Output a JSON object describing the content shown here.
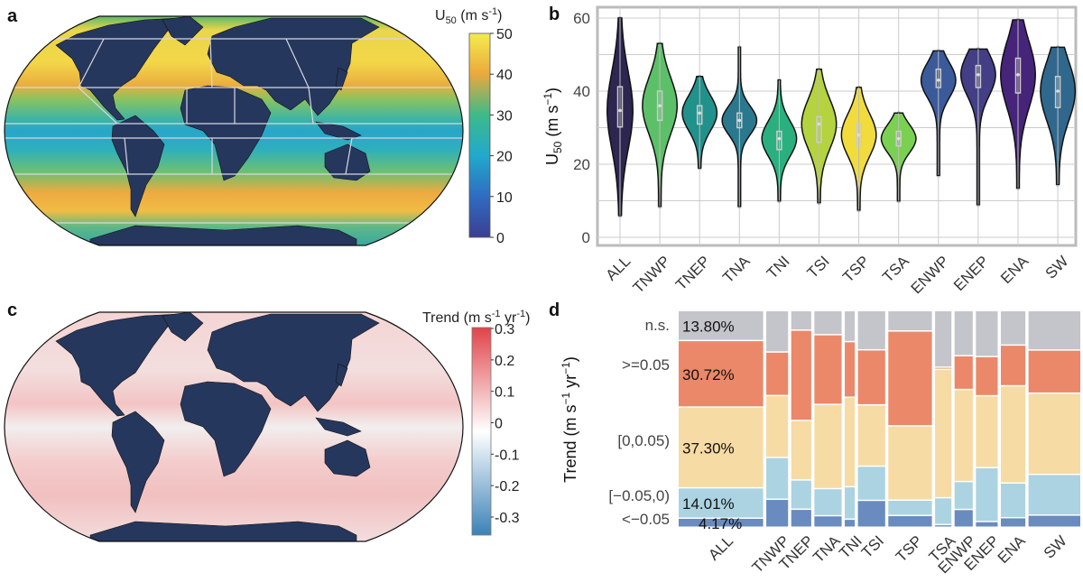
{
  "panel_a": {
    "label": "a",
    "colorbar": {
      "title_main": "U",
      "title_sub": "50",
      "title_unit": " (m s",
      "title_sup": "-1",
      "title_end": ")",
      "ticks": [
        "50",
        "40",
        "30",
        "20",
        "10",
        "0"
      ],
      "colors": [
        "#f5ec4e",
        "#eaa93c",
        "#3dba8a",
        "#21a9cc",
        "#2f6cc2",
        "#3b3f91"
      ]
    },
    "land_color": "#26375e"
  },
  "panel_c": {
    "label": "c",
    "colorbar": {
      "title_main": "Trend (m s",
      "title_sup1": "-1",
      "title_mid": " yr",
      "title_sup2": "-1",
      "title_end": ")",
      "ticks": [
        "0.3",
        "0.2",
        "0.1",
        "0",
        "-0.1",
        "-0.2",
        "-0.3"
      ],
      "colors": [
        "#e0444a",
        "#ffffff",
        "#3b82b8"
      ]
    }
  },
  "chart_data": [
    {
      "panel": "b",
      "type": "violin",
      "ylabel_main": "U",
      "ylabel_sub": "50",
      "ylabel_unit": " (m s",
      "ylabel_sup": "−1",
      "ylabel_end": ")",
      "ylim": [
        0,
        60
      ],
      "yticks": [
        "0",
        "20",
        "40",
        "60"
      ],
      "grid": true,
      "categories": [
        "ALL",
        "TNWP",
        "TNEP",
        "TNA",
        "TNI",
        "TSI",
        "TSP",
        "TSA",
        "ENWP",
        "ENEP",
        "ENA",
        "SW"
      ],
      "series": [
        {
          "region": "ALL",
          "min": 6,
          "q1": 30.2,
          "median": 34.7,
          "q3": 41.2,
          "max": 60,
          "color": "#2c2650"
        },
        {
          "region": "TNWP",
          "min": 8.5,
          "q1": 32,
          "median": 36,
          "q3": 40,
          "max": 53,
          "color": "#5cc068"
        },
        {
          "region": "TNEP",
          "min": 19,
          "q1": 31,
          "median": 34,
          "q3": 36,
          "max": 44,
          "color": "#21918c"
        },
        {
          "region": "TNA",
          "min": 8.5,
          "q1": 30,
          "median": 32,
          "q3": 34,
          "max": 52,
          "color": "#2a788e"
        },
        {
          "region": "TNI",
          "min": 10,
          "q1": 24,
          "median": 27,
          "q3": 29,
          "max": 43,
          "color": "#2ab07f"
        },
        {
          "region": "TSI",
          "min": 9.5,
          "q1": 26,
          "median": 31,
          "q3": 33,
          "max": 46,
          "color": "#b5d33e"
        },
        {
          "region": "TSP",
          "min": 7.5,
          "q1": 25,
          "median": 28,
          "q3": 31,
          "max": 41,
          "color": "#f2dc3c"
        },
        {
          "region": "TSA",
          "min": 10,
          "q1": 25,
          "median": 27,
          "q3": 29,
          "max": 34,
          "color": "#7ad151"
        },
        {
          "region": "ENWP",
          "min": 17,
          "q1": 41,
          "median": 43,
          "q3": 46,
          "max": 51,
          "color": "#3b5a9a"
        },
        {
          "region": "ENEP",
          "min": 9,
          "q1": 41,
          "median": 44.5,
          "q3": 47,
          "max": 51.5,
          "color": "#433e85"
        },
        {
          "region": "ENA",
          "min": 13.5,
          "q1": 39.5,
          "median": 44.5,
          "q3": 49,
          "max": 59.5,
          "color": "#46247a"
        },
        {
          "region": "SW",
          "min": 14.5,
          "q1": 35.5,
          "median": 40,
          "q3": 44,
          "max": 52,
          "color": "#30678d"
        }
      ]
    },
    {
      "panel": "d",
      "type": "mosaic",
      "ylabel_main": "Trend (m s",
      "ylabel_sup1": "−1",
      "ylabel_mid": " yr",
      "ylabel_sup2": "−1",
      "ylabel_end": ")",
      "classes": [
        "<−0.05",
        "[−0.05,0)",
        "[0,0.05)",
        ">=0.05",
        "n.s."
      ],
      "class_colors": [
        "#6a8bbf",
        "#acd3e1",
        "#f6dba4",
        "#ea8869",
        "#c4c5cb"
      ],
      "all_labels": [
        "4.17%",
        "14.01%",
        "37.30%",
        "30.72%",
        "13.80%"
      ],
      "categories": [
        "ALL",
        "TNWP",
        "TNEP",
        "TNA",
        "TNI",
        "TSI",
        "TSP",
        "TSA",
        "ENWP",
        "ENEP",
        "ENA",
        "SW"
      ],
      "relative_size": [
        93,
        24,
        22,
        30,
        11,
        30,
        48,
        18,
        20,
        24,
        27,
        57
      ],
      "percent": [
        [
          4.17,
          14.01,
          37.3,
          30.72,
          13.8
        ],
        [
          12.9,
          19.3,
          28.6,
          20.1,
          19.1
        ],
        [
          8.3,
          13.5,
          27.5,
          41.7,
          9.0
        ],
        [
          5.3,
          12.5,
          38.9,
          32.2,
          11.1
        ],
        [
          3.7,
          15.0,
          41.3,
          25.7,
          14.3
        ],
        [
          12.4,
          15.8,
          28.3,
          25.4,
          18.1
        ],
        [
          5.4,
          7.1,
          34.3,
          43.8,
          9.4
        ],
        [
          1.2,
          12.4,
          59.3,
          1.0,
          26.1
        ],
        [
          8.2,
          12.9,
          42.5,
          15.6,
          20.8
        ],
        [
          2.6,
          24.9,
          33.2,
          18.1,
          21.2
        ],
        [
          4.4,
          16.0,
          44.9,
          18.8,
          15.9
        ],
        [
          5.6,
          18.8,
          37.5,
          19.9,
          18.2
        ]
      ]
    }
  ],
  "panel_b_label": "b",
  "panel_d_label": "d"
}
